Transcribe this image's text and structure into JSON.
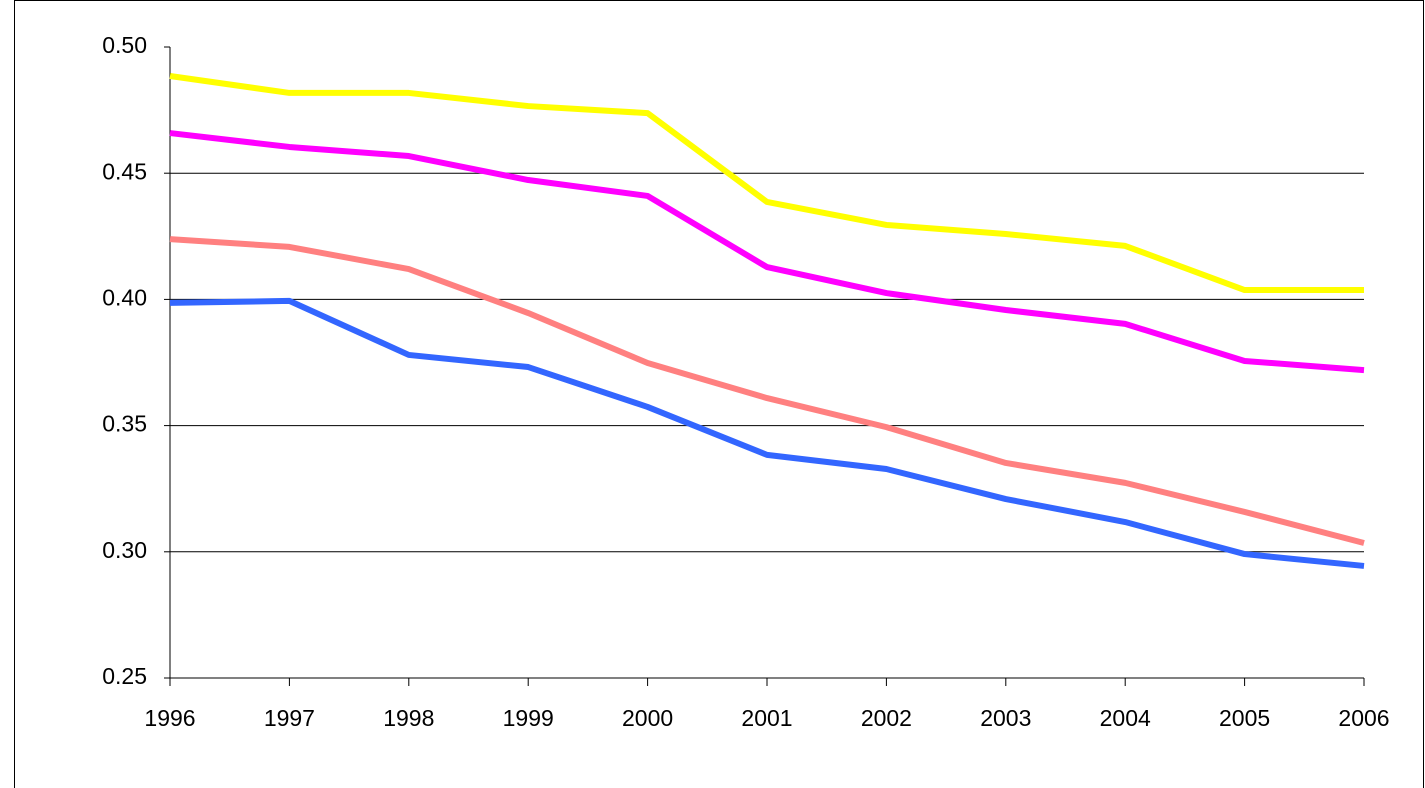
{
  "chart_data": {
    "type": "line",
    "categories": [
      "1996",
      "1997",
      "1998",
      "1999",
      "2000",
      "2001",
      "2002",
      "2003",
      "2004",
      "2005",
      "2006"
    ],
    "series": [
      {
        "color": "#ffff00",
        "values": [
          0.4885,
          0.4818,
          0.4818,
          0.4766,
          0.4738,
          0.4386,
          0.4295,
          0.4259,
          0.4212,
          0.4037,
          0.4037
        ]
      },
      {
        "color": "#ff00ff",
        "values": [
          0.4659,
          0.4604,
          0.4568,
          0.4473,
          0.441,
          0.4128,
          0.4025,
          0.3958,
          0.3903,
          0.3756,
          0.372
        ]
      },
      {
        "color": "#ff8080",
        "values": [
          0.4239,
          0.4208,
          0.412,
          0.3946,
          0.3748,
          0.3609,
          0.3494,
          0.3352,
          0.3273,
          0.3158,
          0.3035
        ]
      },
      {
        "color": "#3366ff",
        "values": [
          0.3986,
          0.3994,
          0.378,
          0.3732,
          0.3574,
          0.3384,
          0.3328,
          0.3209,
          0.3118,
          0.2991,
          0.2944
        ]
      }
    ],
    "ylim": [
      0.25,
      0.5
    ],
    "yticks": [
      0.25,
      {
        "value": 0.3,
        "label": "0.30"
      },
      0.35,
      {
        "value": 0.4,
        "label": "0.40"
      },
      0.45,
      {
        "value": 0.5,
        "label": "0.50"
      }
    ],
    "grid": true
  }
}
